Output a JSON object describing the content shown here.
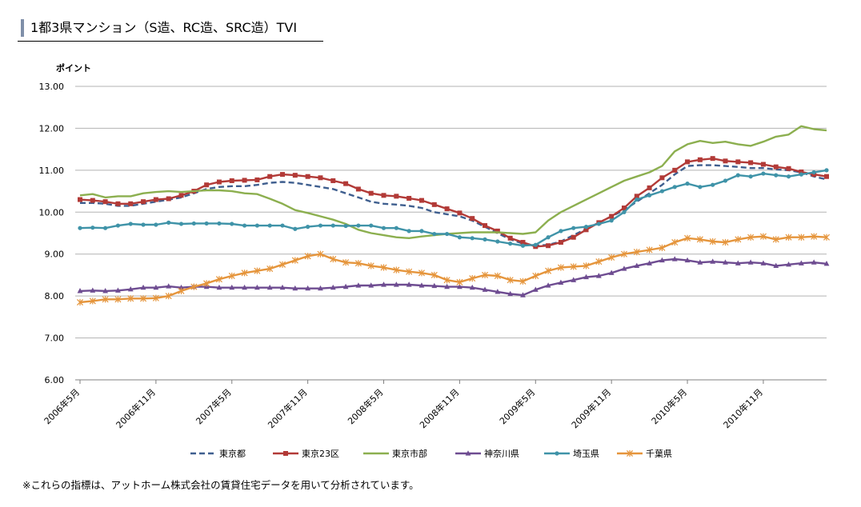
{
  "title": "1都3県マンション（S造、RC造、SRC造）TVI",
  "footnote": "※これらの指標は、アットホーム株式会社の賃貸住宅データを用いて分析されています。",
  "chart_data": {
    "type": "line",
    "ylabel": "ポイント",
    "xlabel": "",
    "ylim": [
      6.0,
      13.0
    ],
    "yticks": [
      "6.00",
      "7.00",
      "8.00",
      "9.00",
      "10.00",
      "11.00",
      "12.00",
      "13.00"
    ],
    "grid": true,
    "legend_position": "bottom",
    "x_tick_labels": [
      {
        "index": 0,
        "label": "2006年5月"
      },
      {
        "index": 6,
        "label": "2006年11月"
      },
      {
        "index": 12,
        "label": "2007年5月"
      },
      {
        "index": 18,
        "label": "2007年11月"
      },
      {
        "index": 24,
        "label": "2008年5月"
      },
      {
        "index": 30,
        "label": "2008年11月"
      },
      {
        "index": 36,
        "label": "2009年5月"
      },
      {
        "index": 42,
        "label": "2009年11月"
      },
      {
        "index": 48,
        "label": "2010年5月"
      },
      {
        "index": 54,
        "label": "2010年11月"
      }
    ],
    "x": [
      "2006-05",
      "2006-06",
      "2006-07",
      "2006-08",
      "2006-09",
      "2006-10",
      "2006-11",
      "2006-12",
      "2007-01",
      "2007-02",
      "2007-03",
      "2007-04",
      "2007-05",
      "2007-06",
      "2007-07",
      "2007-08",
      "2007-09",
      "2007-10",
      "2007-11",
      "2007-12",
      "2008-01",
      "2008-02",
      "2008-03",
      "2008-04",
      "2008-05",
      "2008-06",
      "2008-07",
      "2008-08",
      "2008-09",
      "2008-10",
      "2008-11",
      "2008-12",
      "2009-01",
      "2009-02",
      "2009-03",
      "2009-04",
      "2009-05",
      "2009-06",
      "2009-07",
      "2009-08",
      "2009-09",
      "2009-10",
      "2009-11",
      "2009-12",
      "2010-01",
      "2010-02",
      "2010-03",
      "2010-04",
      "2010-05",
      "2010-06",
      "2010-07",
      "2010-08",
      "2010-09",
      "2010-10",
      "2010-11",
      "2010-12",
      "2011-01",
      "2011-02",
      "2011-03",
      "2011-04"
    ],
    "series": [
      {
        "name": "東京都",
        "color": "#3f5f8f",
        "dash": true,
        "marker": "none",
        "values": [
          10.22,
          10.22,
          10.2,
          10.15,
          10.15,
          10.2,
          10.25,
          10.3,
          10.35,
          10.45,
          10.55,
          10.6,
          10.62,
          10.62,
          10.65,
          10.7,
          10.72,
          10.7,
          10.65,
          10.6,
          10.55,
          10.45,
          10.35,
          10.25,
          10.2,
          10.18,
          10.15,
          10.1,
          10.0,
          9.95,
          9.9,
          9.8,
          9.65,
          9.5,
          9.35,
          9.25,
          9.2,
          9.22,
          9.3,
          9.45,
          9.6,
          9.75,
          9.9,
          10.05,
          10.25,
          10.45,
          10.65,
          10.9,
          11.1,
          11.12,
          11.12,
          11.1,
          11.08,
          11.05,
          11.05,
          11.02,
          11.0,
          10.95,
          10.85,
          10.78
        ]
      },
      {
        "name": "東京23区",
        "color": "#b23a37",
        "marker": "square",
        "values": [
          10.3,
          10.28,
          10.25,
          10.2,
          10.2,
          10.25,
          10.3,
          10.32,
          10.4,
          10.5,
          10.65,
          10.72,
          10.75,
          10.76,
          10.77,
          10.85,
          10.9,
          10.88,
          10.85,
          10.82,
          10.75,
          10.68,
          10.55,
          10.45,
          10.4,
          10.38,
          10.33,
          10.28,
          10.18,
          10.08,
          9.98,
          9.85,
          9.68,
          9.55,
          9.38,
          9.28,
          9.18,
          9.2,
          9.28,
          9.4,
          9.58,
          9.75,
          9.9,
          10.1,
          10.38,
          10.58,
          10.82,
          11.0,
          11.2,
          11.25,
          11.28,
          11.22,
          11.2,
          11.18,
          11.14,
          11.08,
          11.04,
          10.96,
          10.9,
          10.85
        ]
      },
      {
        "name": "東京市部",
        "color": "#8caf4f",
        "marker": "none",
        "values": [
          10.4,
          10.43,
          10.35,
          10.38,
          10.38,
          10.45,
          10.48,
          10.5,
          10.48,
          10.5,
          10.52,
          10.52,
          10.5,
          10.45,
          10.43,
          10.32,
          10.2,
          10.05,
          9.98,
          9.9,
          9.82,
          9.72,
          9.58,
          9.5,
          9.45,
          9.4,
          9.38,
          9.42,
          9.45,
          9.48,
          9.5,
          9.52,
          9.52,
          9.52,
          9.5,
          9.48,
          9.52,
          9.8,
          10.0,
          10.15,
          10.3,
          10.45,
          10.6,
          10.75,
          10.85,
          10.95,
          11.1,
          11.45,
          11.62,
          11.7,
          11.65,
          11.68,
          11.62,
          11.58,
          11.68,
          11.8,
          11.85,
          12.05,
          11.98,
          11.95
        ]
      },
      {
        "name": "神奈川県",
        "color": "#6e4c91",
        "marker": "triangle",
        "values": [
          8.12,
          8.13,
          8.12,
          8.13,
          8.16,
          8.2,
          8.2,
          8.23,
          8.2,
          8.22,
          8.22,
          8.2,
          8.2,
          8.2,
          8.2,
          8.2,
          8.2,
          8.18,
          8.18,
          8.18,
          8.2,
          8.22,
          8.25,
          8.25,
          8.27,
          8.27,
          8.27,
          8.25,
          8.24,
          8.22,
          8.22,
          8.2,
          8.15,
          8.1,
          8.05,
          8.02,
          8.15,
          8.25,
          8.32,
          8.38,
          8.45,
          8.48,
          8.55,
          8.65,
          8.72,
          8.78,
          8.85,
          8.88,
          8.85,
          8.8,
          8.82,
          8.8,
          8.78,
          8.8,
          8.78,
          8.72,
          8.75,
          8.78,
          8.8,
          8.77
        ]
      },
      {
        "name": "埼玉県",
        "color": "#3f93a8",
        "marker": "circle",
        "values": [
          9.62,
          9.63,
          9.62,
          9.68,
          9.72,
          9.7,
          9.7,
          9.75,
          9.72,
          9.73,
          9.73,
          9.73,
          9.72,
          9.68,
          9.68,
          9.68,
          9.68,
          9.6,
          9.65,
          9.68,
          9.68,
          9.67,
          9.68,
          9.68,
          9.62,
          9.62,
          9.55,
          9.55,
          9.48,
          9.48,
          9.4,
          9.38,
          9.35,
          9.3,
          9.25,
          9.2,
          9.22,
          9.4,
          9.55,
          9.62,
          9.65,
          9.72,
          9.8,
          10.0,
          10.3,
          10.4,
          10.5,
          10.6,
          10.68,
          10.6,
          10.65,
          10.75,
          10.88,
          10.85,
          10.92,
          10.88,
          10.85,
          10.9,
          10.95,
          11.0
        ]
      },
      {
        "name": "千葉県",
        "color": "#e5953c",
        "marker": "star",
        "values": [
          7.85,
          7.88,
          7.92,
          7.92,
          7.94,
          7.94,
          7.95,
          8.0,
          8.12,
          8.22,
          8.3,
          8.4,
          8.48,
          8.55,
          8.6,
          8.65,
          8.75,
          8.85,
          8.95,
          9.0,
          8.88,
          8.8,
          8.78,
          8.72,
          8.68,
          8.62,
          8.58,
          8.55,
          8.5,
          8.38,
          8.33,
          8.42,
          8.5,
          8.48,
          8.38,
          8.35,
          8.48,
          8.6,
          8.68,
          8.7,
          8.72,
          8.82,
          8.92,
          9.0,
          9.05,
          9.1,
          9.15,
          9.28,
          9.38,
          9.35,
          9.3,
          9.28,
          9.35,
          9.4,
          9.42,
          9.35,
          9.4,
          9.4,
          9.42,
          9.4
        ]
      }
    ]
  }
}
